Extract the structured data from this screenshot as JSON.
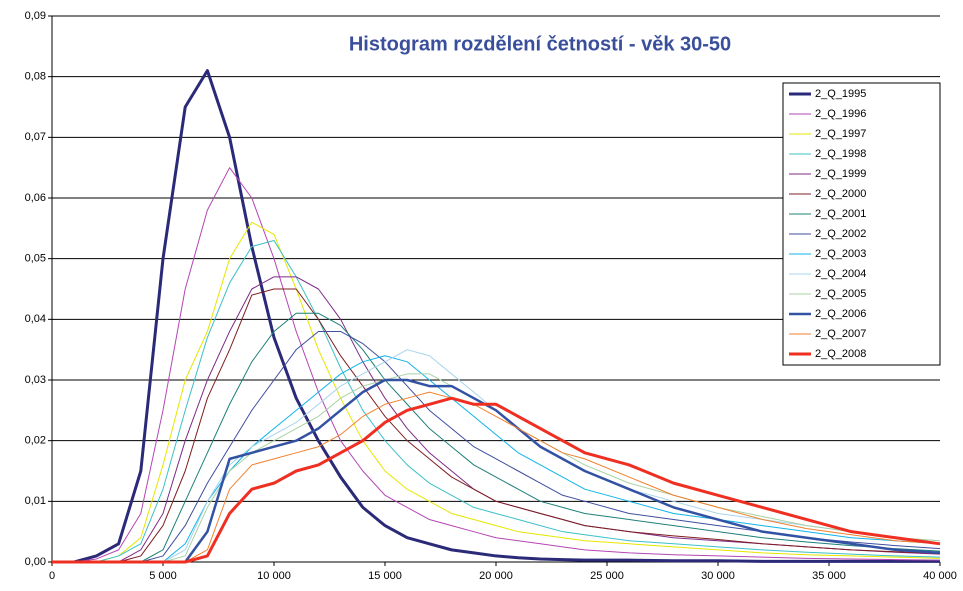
{
  "chart_data": {
    "type": "line",
    "title": "Histogram rozdělení četností  - věk 30-50",
    "x": [
      0,
      1000,
      2000,
      3000,
      4000,
      5000,
      6000,
      7000,
      8000,
      9000,
      10000,
      11000,
      12000,
      13000,
      14000,
      15000,
      16000,
      17000,
      18000,
      19000,
      20000,
      21000,
      22000,
      23000,
      24000,
      26000,
      28000,
      30000,
      32000,
      34000,
      36000,
      38000,
      40000
    ],
    "xlim": [
      0,
      40000
    ],
    "xticks": [
      0,
      {
        "value": 5000,
        "label": "5 000"
      },
      {
        "value": 10000,
        "label": "10 000"
      },
      {
        "value": 15000,
        "label": "15 000"
      },
      {
        "value": 20000,
        "label": "20 000"
      },
      {
        "value": 25000,
        "label": "25 000"
      },
      {
        "value": 30000,
        "label": "30 000"
      },
      {
        "value": 35000,
        "label": "35 000"
      },
      {
        "value": 40000,
        "label": "40 000"
      }
    ],
    "ylim": [
      0,
      0.09
    ],
    "yticks": [
      {
        "value": 0,
        "label": "0,00"
      },
      {
        "value": 0.01,
        "label": "0,01"
      },
      {
        "value": 0.02,
        "label": "0,02"
      },
      {
        "value": 0.03,
        "label": "0,03"
      },
      {
        "value": 0.04,
        "label": "0,04"
      },
      {
        "value": 0.05,
        "label": "0,05"
      },
      {
        "value": 0.06,
        "label": "0,06"
      },
      {
        "value": 0.07,
        "label": "0,07"
      },
      {
        "value": 0.08,
        "label": "0,08"
      },
      {
        "value": 0.09,
        "label": "0,09"
      }
    ],
    "grid": true,
    "legend": "top-right",
    "series": [
      {
        "name": "2_Q_1995",
        "color": "#2b2a78",
        "line_width": 3,
        "values": [
          0,
          0,
          0.001,
          0.003,
          0.015,
          0.05,
          0.075,
          0.081,
          0.07,
          0.052,
          0.037,
          0.027,
          0.02,
          0.014,
          0.009,
          0.006,
          0.004,
          0.003,
          0.002,
          0.0015,
          0.001,
          0.0007,
          0.0005,
          0.0004,
          0.0003,
          0.0003,
          0.0002,
          0.0002,
          0.0001,
          0.0001,
          0.0001,
          0.0001,
          0.0001
        ]
      },
      {
        "name": "2_Q_1996",
        "color": "#b446b4",
        "line_width": 1,
        "values": [
          0,
          0,
          0.0005,
          0.002,
          0.008,
          0.025,
          0.045,
          0.058,
          0.065,
          0.06,
          0.05,
          0.038,
          0.028,
          0.02,
          0.015,
          0.011,
          0.009,
          0.007,
          0.006,
          0.005,
          0.004,
          0.0035,
          0.003,
          0.0025,
          0.002,
          0.0015,
          0.0012,
          0.001,
          0.0008,
          0.0006,
          0.0005,
          0.0004,
          0.0003
        ]
      },
      {
        "name": "2_Q_1997",
        "color": "#e6e600",
        "line_width": 1,
        "values": [
          0,
          0,
          0,
          0.001,
          0.004,
          0.016,
          0.03,
          0.038,
          0.05,
          0.056,
          0.054,
          0.045,
          0.035,
          0.027,
          0.02,
          0.015,
          0.012,
          0.01,
          0.008,
          0.007,
          0.006,
          0.005,
          0.0045,
          0.004,
          0.0035,
          0.003,
          0.0025,
          0.002,
          0.0015,
          0.0012,
          0.001,
          0.0008,
          0.0006
        ]
      },
      {
        "name": "2_Q_1998",
        "color": "#3cc0c8",
        "line_width": 1,
        "values": [
          0,
          0,
          0,
          0.001,
          0.003,
          0.012,
          0.025,
          0.037,
          0.046,
          0.052,
          0.053,
          0.047,
          0.04,
          0.032,
          0.025,
          0.02,
          0.016,
          0.013,
          0.011,
          0.009,
          0.008,
          0.007,
          0.006,
          0.005,
          0.0045,
          0.0035,
          0.003,
          0.0025,
          0.002,
          0.0016,
          0.0013,
          0.001,
          0.0008
        ]
      },
      {
        "name": "2_Q_1999",
        "color": "#7e2a86",
        "line_width": 1,
        "values": [
          0,
          0,
          0,
          0,
          0.002,
          0.008,
          0.02,
          0.03,
          0.038,
          0.045,
          0.047,
          0.047,
          0.045,
          0.04,
          0.033,
          0.027,
          0.022,
          0.018,
          0.015,
          0.012,
          0.01,
          0.009,
          0.008,
          0.007,
          0.006,
          0.005,
          0.004,
          0.0035,
          0.003,
          0.0025,
          0.002,
          0.0016,
          0.0013
        ]
      },
      {
        "name": "2_Q_2000",
        "color": "#7e1e22",
        "line_width": 1,
        "values": [
          0,
          0,
          0,
          0,
          0.001,
          0.006,
          0.015,
          0.027,
          0.035,
          0.044,
          0.045,
          0.045,
          0.04,
          0.034,
          0.029,
          0.024,
          0.02,
          0.017,
          0.014,
          0.012,
          0.01,
          0.009,
          0.008,
          0.007,
          0.006,
          0.005,
          0.0043,
          0.0037,
          0.003,
          0.0025,
          0.002,
          0.0017,
          0.0014
        ]
      },
      {
        "name": "2_Q_2001",
        "color": "#1e8078",
        "line_width": 1,
        "values": [
          0,
          0,
          0,
          0,
          0,
          0.002,
          0.01,
          0.018,
          0.026,
          0.033,
          0.038,
          0.041,
          0.041,
          0.039,
          0.035,
          0.03,
          0.026,
          0.022,
          0.019,
          0.016,
          0.014,
          0.012,
          0.01,
          0.009,
          0.008,
          0.007,
          0.006,
          0.005,
          0.004,
          0.0033,
          0.0027,
          0.0022,
          0.0018
        ]
      },
      {
        "name": "2_Q_2002",
        "color": "#3f4ea0",
        "line_width": 1,
        "values": [
          0,
          0,
          0,
          0,
          0,
          0.001,
          0.006,
          0.013,
          0.019,
          0.025,
          0.03,
          0.035,
          0.038,
          0.038,
          0.036,
          0.033,
          0.029,
          0.025,
          0.022,
          0.019,
          0.017,
          0.015,
          0.013,
          0.011,
          0.01,
          0.008,
          0.007,
          0.006,
          0.005,
          0.004,
          0.0033,
          0.0027,
          0.0022
        ]
      },
      {
        "name": "2_Q_2003",
        "color": "#10b4ea",
        "line_width": 1,
        "values": [
          0,
          0,
          0,
          0,
          0,
          0,
          0.003,
          0.01,
          0.015,
          0.019,
          0.022,
          0.025,
          0.028,
          0.031,
          0.033,
          0.034,
          0.033,
          0.03,
          0.027,
          0.024,
          0.021,
          0.018,
          0.016,
          0.014,
          0.012,
          0.01,
          0.008,
          0.007,
          0.006,
          0.005,
          0.004,
          0.0035,
          0.003
        ]
      },
      {
        "name": "2_Q_2004",
        "color": "#a8d4ec",
        "line_width": 1,
        "values": [
          0,
          0,
          0,
          0,
          0,
          0,
          0.002,
          0.01,
          0.016,
          0.019,
          0.021,
          0.023,
          0.026,
          0.029,
          0.031,
          0.033,
          0.035,
          0.034,
          0.031,
          0.028,
          0.025,
          0.022,
          0.019,
          0.017,
          0.015,
          0.012,
          0.01,
          0.008,
          0.007,
          0.006,
          0.005,
          0.004,
          0.0035
        ]
      },
      {
        "name": "2_Q_2005",
        "color": "#a8d2a4",
        "line_width": 1,
        "values": [
          0,
          0,
          0,
          0,
          0,
          0,
          0.001,
          0.009,
          0.015,
          0.018,
          0.02,
          0.022,
          0.024,
          0.027,
          0.029,
          0.03,
          0.031,
          0.031,
          0.029,
          0.027,
          0.025,
          0.022,
          0.02,
          0.018,
          0.016,
          0.013,
          0.011,
          0.009,
          0.0075,
          0.006,
          0.005,
          0.004,
          0.0035
        ]
      },
      {
        "name": "2_Q_2006",
        "color": "#3352a4",
        "line_width": 2.5,
        "values": [
          0,
          0,
          0,
          0,
          0,
          0,
          0,
          0.005,
          0.017,
          0.018,
          0.019,
          0.02,
          0.022,
          0.025,
          0.028,
          0.03,
          0.03,
          0.029,
          0.029,
          0.027,
          0.025,
          0.022,
          0.019,
          0.017,
          0.015,
          0.012,
          0.009,
          0.007,
          0.005,
          0.004,
          0.003,
          0.002,
          0.0015
        ]
      },
      {
        "name": "2_Q_2007",
        "color": "#f0822e",
        "line_width": 1,
        "values": [
          0,
          0,
          0,
          0,
          0,
          0,
          0,
          0.002,
          0.012,
          0.016,
          0.017,
          0.018,
          0.019,
          0.021,
          0.024,
          0.026,
          0.027,
          0.028,
          0.027,
          0.026,
          0.024,
          0.022,
          0.02,
          0.018,
          0.017,
          0.014,
          0.011,
          0.009,
          0.007,
          0.0055,
          0.0045,
          0.0035,
          0.003
        ]
      },
      {
        "name": "2_Q_2008",
        "color": "#ee2f22",
        "line_width": 3,
        "values": [
          0,
          0,
          0,
          0,
          0,
          0,
          0,
          0.001,
          0.008,
          0.012,
          0.013,
          0.015,
          0.016,
          0.018,
          0.02,
          0.023,
          0.025,
          0.026,
          0.027,
          0.026,
          0.026,
          0.024,
          0.022,
          0.02,
          0.018,
          0.016,
          0.013,
          0.011,
          0.009,
          0.007,
          0.005,
          0.004,
          0.003
        ]
      }
    ]
  }
}
